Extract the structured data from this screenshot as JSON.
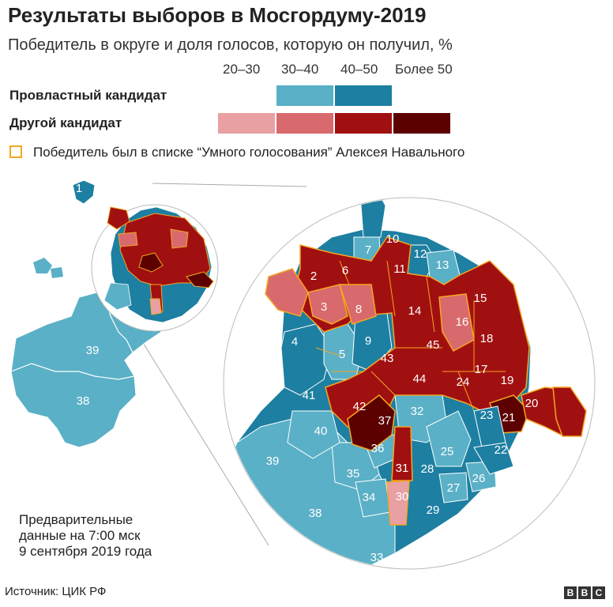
{
  "title": "Результаты выборов в Мосгордуму-2019",
  "subtitle": "Победитель в округе и доля голосов, которую он получил, %",
  "legend": {
    "ranges": [
      "20–30",
      "30–40",
      "40–50",
      "Более 50"
    ],
    "pro_label": "Провластный кандидат",
    "other_label": "Другой кандидат",
    "navalny_label": "Победитель был в списке “Умного голосования” Алексея Навального",
    "pro_colors": [
      "#5ab0c6",
      "#1d7fa1"
    ],
    "other_colors": [
      "#e8a0a3",
      "#d86a6d",
      "#a11010",
      "#5c0000"
    ],
    "navalny_color": "#f5a623"
  },
  "note": [
    "Предварительные",
    "данные на 7:00 мск",
    "9 сентября 2019 года"
  ],
  "source": "Источник: ЦИК РФ",
  "brand": [
    "B",
    "B",
    "C"
  ],
  "chart_data": {
    "type": "map",
    "districts": [
      {
        "n": 1,
        "winner": "pro",
        "share": "40–50",
        "navalny": false
      },
      {
        "n": 2,
        "winner": "other",
        "share": "40–50",
        "navalny": true
      },
      {
        "n": 3,
        "winner": "other",
        "share": "30–40",
        "navalny": true
      },
      {
        "n": 4,
        "winner": "pro",
        "share": "30–40",
        "navalny": false
      },
      {
        "n": 5,
        "winner": "pro",
        "share": "30–40",
        "navalny": false
      },
      {
        "n": 6,
        "winner": "other",
        "share": "40–50",
        "navalny": true
      },
      {
        "n": 7,
        "winner": "pro",
        "share": "30–40",
        "navalny": false
      },
      {
        "n": 8,
        "winner": "other",
        "share": "30–40",
        "navalny": true
      },
      {
        "n": 9,
        "winner": "pro",
        "share": "30–40",
        "navalny": false
      },
      {
        "n": 10,
        "winner": "pro",
        "share": "40–50",
        "navalny": false
      },
      {
        "n": 11,
        "winner": "other",
        "share": "40–50",
        "navalny": true
      },
      {
        "n": 12,
        "winner": "pro",
        "share": "40–50",
        "navalny": false
      },
      {
        "n": 13,
        "winner": "pro",
        "share": "30–40",
        "navalny": false
      },
      {
        "n": 14,
        "winner": "other",
        "share": "40–50",
        "navalny": true
      },
      {
        "n": 15,
        "winner": "other",
        "share": "40–50",
        "navalny": true
      },
      {
        "n": 16,
        "winner": "other",
        "share": "30–40",
        "navalny": true
      },
      {
        "n": 17,
        "winner": "other",
        "share": "40–50",
        "navalny": true
      },
      {
        "n": 18,
        "winner": "other",
        "share": "40–50",
        "navalny": true
      },
      {
        "n": 19,
        "winner": "other",
        "share": "40–50",
        "navalny": true
      },
      {
        "n": 20,
        "winner": "other",
        "share": "40–50",
        "navalny": true
      },
      {
        "n": 21,
        "winner": "other",
        "share": "Более 50",
        "navalny": true
      },
      {
        "n": 22,
        "winner": "pro",
        "share": "40–50",
        "navalny": false
      },
      {
        "n": 23,
        "winner": "pro",
        "share": "40–50",
        "navalny": false
      },
      {
        "n": 24,
        "winner": "other",
        "share": "40–50",
        "navalny": true
      },
      {
        "n": 25,
        "winner": "pro",
        "share": "30–40",
        "navalny": false
      },
      {
        "n": 26,
        "winner": "pro",
        "share": "30–40",
        "navalny": false
      },
      {
        "n": 27,
        "winner": "pro",
        "share": "30–40",
        "navalny": false
      },
      {
        "n": 28,
        "winner": "pro",
        "share": "40–50",
        "navalny": false
      },
      {
        "n": 29,
        "winner": "pro",
        "share": "40–50",
        "navalny": false
      },
      {
        "n": 30,
        "winner": "other",
        "share": "20–30",
        "navalny": true
      },
      {
        "n": 31,
        "winner": "other",
        "share": "40–50",
        "navalny": true
      },
      {
        "n": 32,
        "winner": "pro",
        "share": "30–40",
        "navalny": false
      },
      {
        "n": 33,
        "winner": "pro",
        "share": "40–50",
        "navalny": false
      },
      {
        "n": 34,
        "winner": "pro",
        "share": "30–40",
        "navalny": false
      },
      {
        "n": 35,
        "winner": "pro",
        "share": "30–40",
        "navalny": false
      },
      {
        "n": 36,
        "winner": "pro",
        "share": "30–40",
        "navalny": false
      },
      {
        "n": 37,
        "winner": "other",
        "share": "Более 50",
        "navalny": true
      },
      {
        "n": 38,
        "winner": "pro",
        "share": "30–40",
        "navalny": false
      },
      {
        "n": 39,
        "winner": "pro",
        "share": "30–40",
        "navalny": false
      },
      {
        "n": 40,
        "winner": "pro",
        "share": "30–40",
        "navalny": false
      },
      {
        "n": 41,
        "winner": "pro",
        "share": "40–50",
        "navalny": false
      },
      {
        "n": 42,
        "winner": "other",
        "share": "40–50",
        "navalny": true
      },
      {
        "n": 43,
        "winner": "other",
        "share": "40–50",
        "navalny": true
      },
      {
        "n": 44,
        "winner": "other",
        "share": "40–50",
        "navalny": true
      },
      {
        "n": 45,
        "winner": "other",
        "share": "40–50",
        "navalny": true
      }
    ]
  }
}
